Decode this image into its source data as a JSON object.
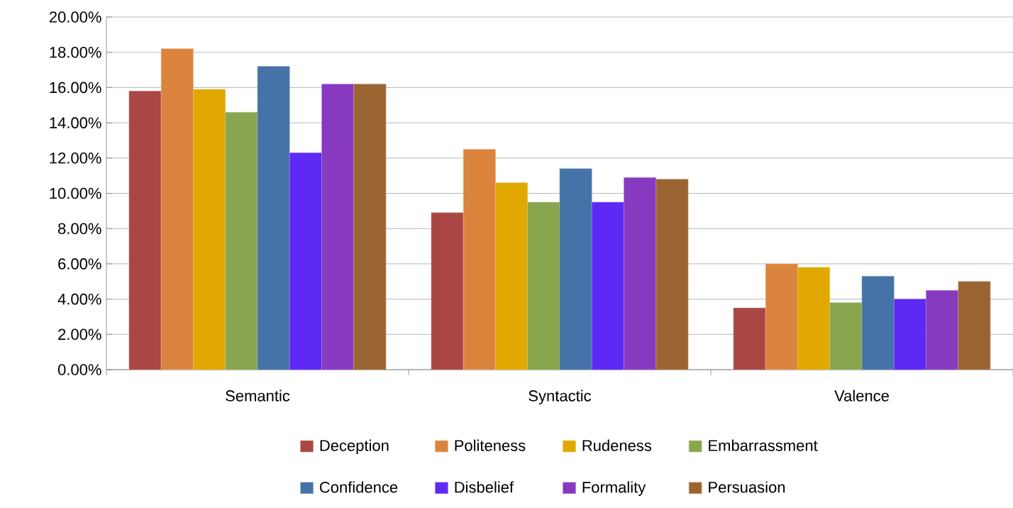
{
  "chart_data": {
    "type": "bar",
    "categories": [
      "Semantic",
      "Syntactic",
      "Valence"
    ],
    "series": [
      {
        "name": "Deception",
        "color": "#aa4643",
        "values": [
          15.8,
          8.9,
          3.5
        ]
      },
      {
        "name": "Politeness",
        "color": "#db843d",
        "values": [
          18.2,
          12.5,
          6.0
        ]
      },
      {
        "name": "Rudeness",
        "color": "#e0a800",
        "values": [
          15.9,
          10.6,
          5.8
        ]
      },
      {
        "name": "Embarrassment",
        "color": "#89a54e",
        "values": [
          14.6,
          9.5,
          3.8
        ]
      },
      {
        "name": "Confidence",
        "color": "#4572a7",
        "values": [
          17.2,
          11.4,
          5.3
        ]
      },
      {
        "name": "Disbelief",
        "color": "#5e28f5",
        "values": [
          12.3,
          9.5,
          4.0
        ]
      },
      {
        "name": "Formality",
        "color": "#8739c0",
        "values": [
          16.2,
          10.9,
          4.5
        ]
      },
      {
        "name": "Persuasion",
        "color": "#9a6432",
        "values": [
          16.2,
          10.8,
          5.0
        ]
      }
    ],
    "ylim": [
      0,
      20
    ],
    "yticks": [
      {
        "value": 0,
        "label": "0.00%"
      },
      {
        "value": 2,
        "label": "2.00%"
      },
      {
        "value": 4,
        "label": "4.00%"
      },
      {
        "value": 6,
        "label": "6.00%"
      },
      {
        "value": 8,
        "label": "8.00%"
      },
      {
        "value": 10,
        "label": "10.00%"
      },
      {
        "value": 12,
        "label": "12.00%"
      },
      {
        "value": 14,
        "label": "14.00%"
      },
      {
        "value": 16,
        "label": "16.00%"
      },
      {
        "value": 18,
        "label": "18.00%"
      },
      {
        "value": 20,
        "label": "20.00%"
      }
    ],
    "grid": "y",
    "legend": "bottom"
  }
}
